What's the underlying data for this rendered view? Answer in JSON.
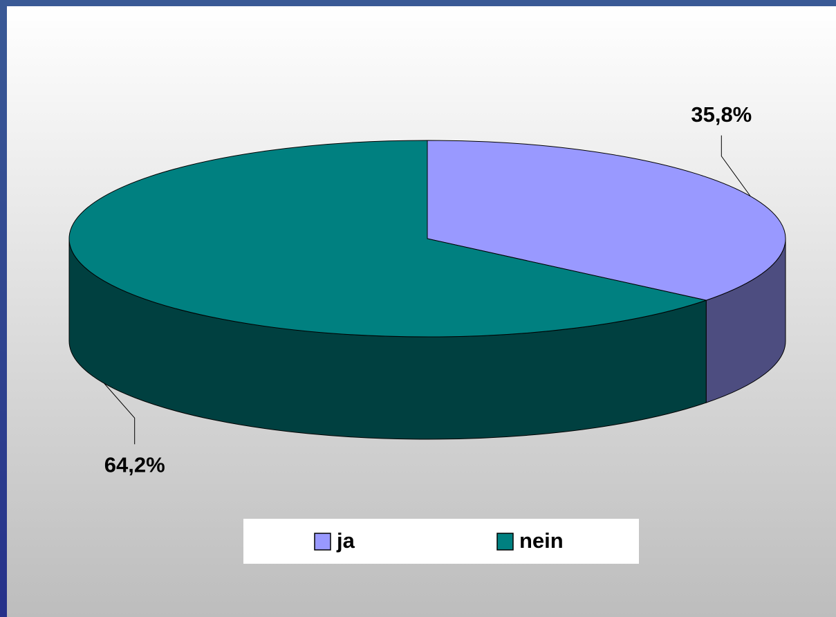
{
  "chart_data": {
    "type": "pie",
    "categories": [
      "ja",
      "nein"
    ],
    "values": [
      35.8,
      64.2
    ],
    "value_labels": [
      "35,8%",
      "64,2%"
    ],
    "colors": [
      "#9999ff",
      "#008080"
    ],
    "legend": "bottom"
  }
}
